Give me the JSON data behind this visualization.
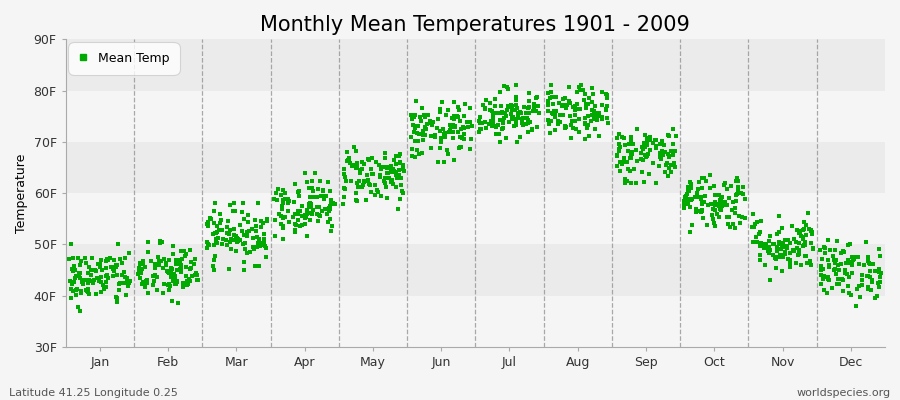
{
  "title": "Monthly Mean Temperatures 1901 - 2009",
  "ylabel": "Temperature",
  "ylim": [
    30,
    90
  ],
  "yticks": [
    30,
    40,
    50,
    60,
    70,
    80,
    90
  ],
  "ytick_labels": [
    "30F",
    "40F",
    "50F",
    "60F",
    "70F",
    "80F",
    "90F"
  ],
  "months": [
    "Jan",
    "Feb",
    "Mar",
    "Apr",
    "May",
    "Jun",
    "Jul",
    "Aug",
    "Sep",
    "Oct",
    "Nov",
    "Dec"
  ],
  "month_means": [
    43.5,
    44.5,
    52.0,
    57.5,
    63.5,
    72.0,
    75.5,
    75.5,
    67.5,
    58.5,
    50.0,
    45.0
  ],
  "month_stds": [
    2.8,
    2.8,
    2.8,
    2.8,
    2.8,
    2.8,
    2.5,
    2.5,
    2.8,
    2.8,
    2.8,
    2.8
  ],
  "month_mins": [
    37,
    38,
    45,
    51,
    57,
    66,
    70,
    70,
    62,
    52,
    43,
    38
  ],
  "month_maxs": [
    50,
    51,
    58,
    64,
    69,
    78,
    81,
    81,
    73,
    64,
    57,
    52
  ],
  "n_years": 109,
  "marker_color": "#00aa00",
  "marker": "s",
  "marker_size": 2.5,
  "legend_label": "Mean Temp",
  "bg_color": "#f5f5f5",
  "band_color_even": "#f5f5f5",
  "band_color_odd": "#ebebeb",
  "h_band_even": "#f5f5f5",
  "h_band_odd": "#ebebeb",
  "dash_color": "#888888",
  "subtitle_left": "Latitude 41.25 Longitude 0.25",
  "subtitle_right": "worldspecies.org",
  "title_fontsize": 15,
  "axis_label_fontsize": 9,
  "tick_fontsize": 9,
  "annotation_fontsize": 8
}
